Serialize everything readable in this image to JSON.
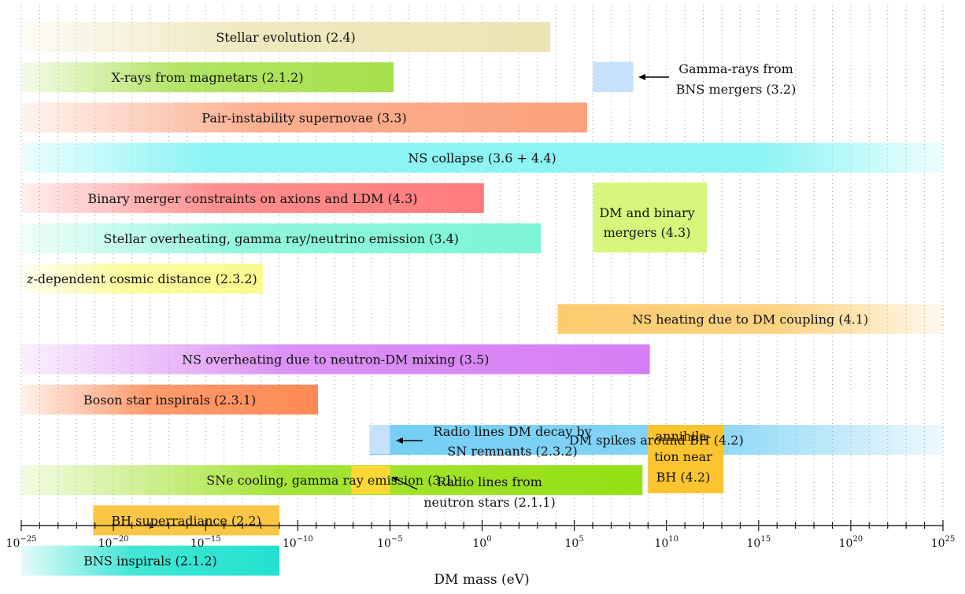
{
  "chart_data": {
    "type": "bar",
    "orientation": "horizontal-range",
    "x_scale": "log",
    "xlim": [
      "1e-25",
      "1e25"
    ],
    "xlabel": "DM mass (eV)",
    "grid": true,
    "x_ticks": [
      {
        "base": "10",
        "exp": "−25"
      },
      {
        "base": "10",
        "exp": "−20"
      },
      {
        "base": "10",
        "exp": "−15"
      },
      {
        "base": "10",
        "exp": "−10"
      },
      {
        "base": "10",
        "exp": "−5"
      },
      {
        "base": "10",
        "exp": "0"
      },
      {
        "base": "10",
        "exp": "5"
      },
      {
        "base": "10",
        "exp": "10"
      },
      {
        "base": "10",
        "exp": "15"
      },
      {
        "base": "10",
        "exp": "20"
      },
      {
        "base": "10",
        "exp": "25"
      }
    ],
    "bars": [
      {
        "label": "Stellar evolution (2.4)",
        "x_from": "1e-25",
        "x_to": "1e3.7",
        "color": "#ede4b5",
        "fade": "left"
      },
      {
        "label": "X-rays from magnetars (2.1.2)",
        "x_from": "1e-25",
        "x_to": "1e-4.8",
        "color": "#a6e04b",
        "fade": "left"
      },
      {
        "label": "Pair-instability supernovae (3.3)",
        "x_from": "1e-25",
        "x_to": "1e5.7",
        "color": "#fba27d",
        "fade": "left"
      },
      {
        "label": "NS collapse (3.6 + 4.4)",
        "x_from": "1e-25",
        "x_to": "1e25",
        "color": "#8cf4f4",
        "fade": "both"
      },
      {
        "label": "Binary merger constraints on axions and LDM (4.3)",
        "x_from": "1e-25",
        "x_to": "1e0.1",
        "color": "#ff7b7b",
        "fade": "left"
      },
      {
        "label": "Stellar overheating, gamma ray/neutrino emission (3.4)",
        "x_from": "1e-25",
        "x_to": "1e3.2",
        "color": "#7ef5d6",
        "fade": "left"
      },
      {
        "label": "z-dependent cosmic distance (2.3.2)",
        "x_from": "1e-25",
        "x_to": "1e-11.9",
        "color": "#fbfa8e",
        "fade": "left"
      },
      {
        "label": "NS heating due to DM coupling (4.1)",
        "x_from": "1e4.1",
        "x_to": "1e25",
        "color": "#fdcb6e",
        "fade": "right"
      },
      {
        "label": "NS overheating due to neutron-DM mixing (3.5)",
        "x_from": "1e-25",
        "x_to": "1e9.1",
        "color": "#d67ef4",
        "fade": "left"
      },
      {
        "label": "Boson star inspirals (2.3.1)",
        "x_from": "1e-25",
        "x_to": "1e-8.9",
        "color": "#ff8a55",
        "fade": "left"
      },
      {
        "label": "DM spikes around BH (4.2)",
        "x_from": "1e-6.1",
        "x_to": "1e25",
        "color": "#72cef5",
        "fade": "right"
      },
      {
        "label": "SNe cooling, gamma ray emission (3.1)",
        "x_from": "1e-25",
        "x_to": "1e8.7",
        "color": "#95df14",
        "fade": "left"
      },
      {
        "label": "BH superradiance (2.2)",
        "x_from": "1e-21.1",
        "x_to": "1e-11",
        "color": "#fbc643",
        "fade": "none"
      },
      {
        "label": "BNS inspirals (2.1.2)",
        "x_from": "1e-25",
        "x_to": "1e-11",
        "color": "#22e2cf",
        "fade": "left"
      }
    ],
    "boxes": [
      {
        "label": "",
        "x_from": "1e6",
        "x_to": "1e8.2",
        "color": "#c5e1fc"
      },
      {
        "label": "DM and binary mergers (4.3)",
        "x_from": "1e6",
        "x_to": "1e12.2",
        "color": "#d6f77c"
      },
      {
        "label": "",
        "x_from": "1e-6.1",
        "x_to": "1e-5",
        "color": "#c5e1fc"
      },
      {
        "label": "",
        "x_from": "1e-7.1",
        "x_to": "1e-5",
        "color": "#fdd835"
      },
      {
        "label": "annihilation near BH (4.2)",
        "x_from": "1e9",
        "x_to": "1e13.1",
        "color": "#fcc42f"
      }
    ],
    "annotations": [
      {
        "text": "Gamma-rays from BNS mergers (3.2)"
      },
      {
        "text": "Radio lines DM decay by SN remnants (2.3.2)"
      },
      {
        "text": "Radio lines from neutron stars (2.1.1)"
      }
    ],
    "box_text": {
      "dm_binary": [
        "DM and binary",
        "mergers (4.3)"
      ],
      "annihilation": [
        "annihila-",
        "tion near",
        "BH (4.2)"
      ]
    },
    "annotation_text": {
      "gamma": [
        "Gamma-rays from",
        "BNS mergers (3.2)"
      ],
      "radio_decay": [
        "Radio lines DM decay by",
        "SN remnants (2.3.2)"
      ],
      "radio_ns": [
        "Radio lines from",
        "neutron stars (2.1.1)"
      ]
    }
  }
}
